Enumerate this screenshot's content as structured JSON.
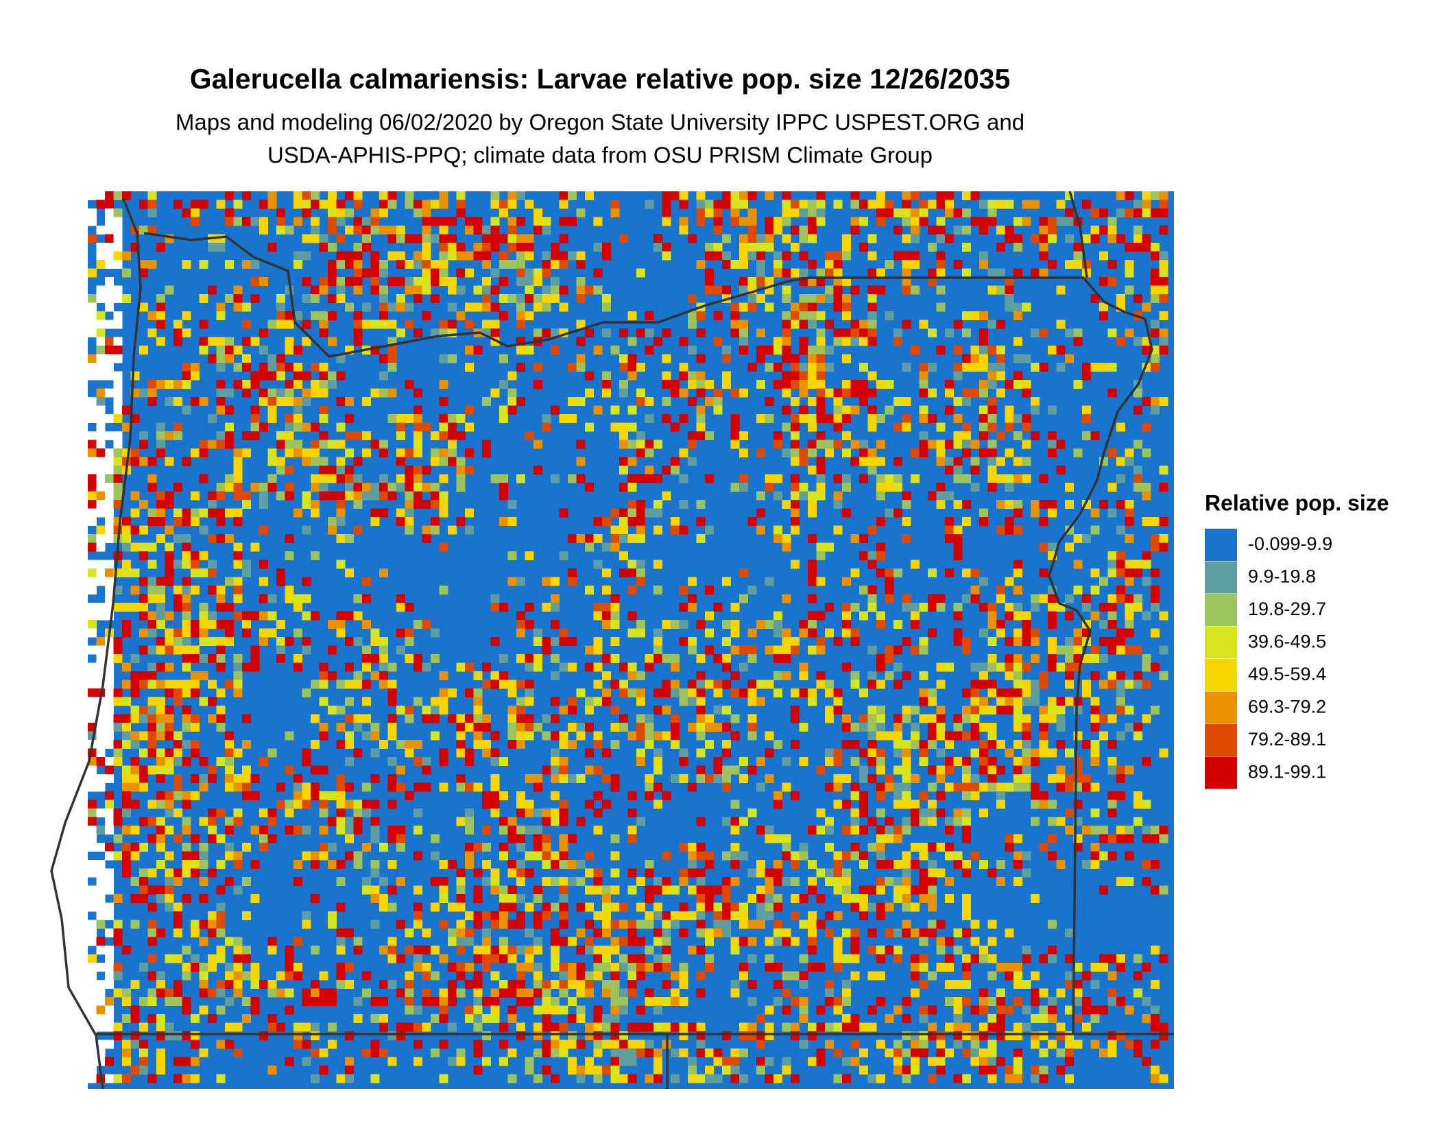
{
  "title": "Galerucella calmariensis: Larvae relative pop. size 12/26/2035",
  "subtitle": [
    "Maps and modeling 06/02/2020 by Oregon State University IPPC USPEST.ORG and",
    "USDA-APHIS-PPQ; climate data from OSU PRISM Climate Group"
  ],
  "legend": {
    "title": "Relative pop. size",
    "items": [
      {
        "label": "-0.099-9.9",
        "color": "#1874cd"
      },
      {
        "label": "9.9-19.8",
        "color": "#5f9ea0"
      },
      {
        "label": "19.8-29.7",
        "color": "#9dc35c"
      },
      {
        "label": "39.6-49.5",
        "color": "#d7e51f"
      },
      {
        "label": "49.5-59.4",
        "color": "#f7d600"
      },
      {
        "label": "69.3-79.2",
        "color": "#ea9100"
      },
      {
        "label": "79.2-89.1",
        "color": "#de4a00"
      },
      {
        "label": "89.1-99.1",
        "color": "#d40000"
      }
    ]
  }
}
